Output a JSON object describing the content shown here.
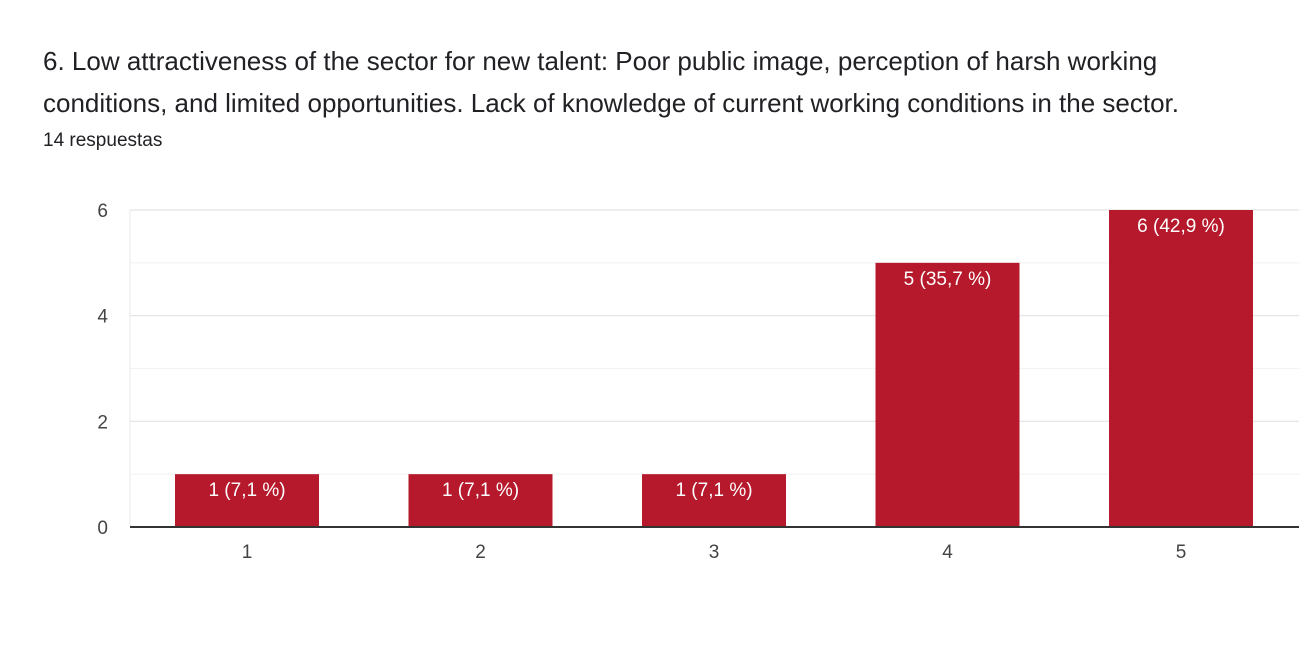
{
  "question": {
    "title": "6. Low attractiveness of the sector for new talent: Poor public image, perception of harsh working conditions, and limited opportunities. Lack of knowledge of current working conditions in the sector.",
    "response_count": "14 respuestas"
  },
  "colors": {
    "bar": "#b5192b",
    "grid": "#ececec",
    "axis": "#333333"
  },
  "chart_data": {
    "type": "bar",
    "title": "",
    "xlabel": "",
    "ylabel": "",
    "categories": [
      "1",
      "2",
      "3",
      "4",
      "5"
    ],
    "values": [
      1,
      1,
      1,
      5,
      6
    ],
    "data_labels": [
      "1 (7,1 %)",
      "1 (7,1 %)",
      "1 (7,1 %)",
      "5 (35,7 %)",
      "6 (42,9 %)"
    ],
    "ylim": [
      0,
      6
    ],
    "yticks": [
      0,
      2,
      4,
      6
    ],
    "grid": true,
    "legend": "none"
  }
}
